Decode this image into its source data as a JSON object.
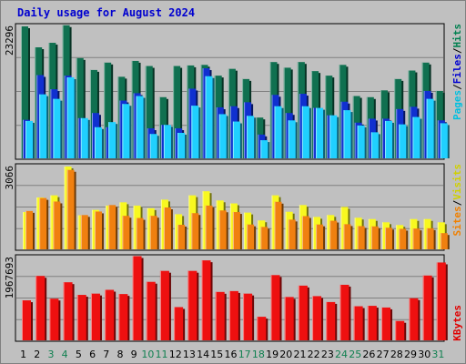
{
  "title": "Daily usage for August 2024",
  "colors": {
    "hits": "#107050",
    "files": "#1030d0",
    "pages": "#20d0ff",
    "visits": "#f8f820",
    "sites": "#f08010",
    "kbytes": "#ee1010",
    "weekend_label": "#108050",
    "weekday_label": "#000000",
    "pages_label": "#00c0e0",
    "files_label": "#0000d0",
    "hits_label": "#008050",
    "visits_label": "#d0d000",
    "sites_label": "#f08000",
    "kbytes_label": "#e00000"
  },
  "chart_data": [
    {
      "type": "bar",
      "name": "hits-files-pages",
      "categories": [
        "1",
        "2",
        "3",
        "4",
        "5",
        "6",
        "7",
        "8",
        "9",
        "10",
        "11",
        "12",
        "13",
        "14",
        "15",
        "16",
        "17",
        "18",
        "19",
        "20",
        "21",
        "22",
        "23",
        "24",
        "25",
        "26",
        "27",
        "28",
        "29",
        "30",
        "31"
      ],
      "weekend": [
        false,
        false,
        true,
        true,
        false,
        false,
        false,
        false,
        false,
        true,
        true,
        false,
        false,
        false,
        false,
        false,
        true,
        true,
        false,
        false,
        false,
        false,
        false,
        true,
        true,
        false,
        false,
        false,
        false,
        false,
        true
      ],
      "ylabel_max": "23296",
      "ymax": 23296,
      "legend": [
        "Pages",
        "Files",
        "Hits"
      ],
      "series": [
        {
          "name": "Hits",
          "values": [
            23296,
            19600,
            20400,
            23496,
            17700,
            15600,
            16900,
            14400,
            17200,
            16300,
            10800,
            16300,
            16400,
            16500,
            14600,
            15800,
            14000,
            7200,
            17000,
            16000,
            17000,
            15400,
            14600,
            16500,
            11000,
            10800,
            12000,
            14000,
            15500,
            16900,
            11900
          ]
        },
        {
          "name": "Files",
          "values": [
            6800,
            14700,
            12200,
            14600,
            7100,
            8000,
            5500,
            10200,
            11500,
            5300,
            5900,
            5300,
            12300,
            15900,
            9000,
            9200,
            9900,
            4200,
            11200,
            8000,
            11400,
            8900,
            7600,
            10000,
            6300,
            7000,
            7000,
            8700,
            9100,
            11900,
            6700
          ]
        },
        {
          "name": "Pages",
          "values": [
            6600,
            11300,
            10500,
            14300,
            7100,
            5500,
            6400,
            9600,
            11000,
            4300,
            5900,
            4500,
            9300,
            14500,
            7800,
            6500,
            7500,
            3200,
            9200,
            6700,
            9200,
            8900,
            7600,
            8500,
            5800,
            4600,
            6600,
            6000,
            7300,
            10500,
            6200
          ]
        }
      ]
    },
    {
      "type": "bar",
      "name": "visits-sites",
      "categories": [
        "1",
        "2",
        "3",
        "4",
        "5",
        "6",
        "7",
        "8",
        "9",
        "10",
        "11",
        "12",
        "13",
        "14",
        "15",
        "16",
        "17",
        "18",
        "19",
        "20",
        "21",
        "22",
        "23",
        "24",
        "25",
        "26",
        "27",
        "28",
        "29",
        "30",
        "31"
      ],
      "ylabel_max": "3066",
      "ymax": 3066,
      "legend": [
        "Sites",
        "Visits"
      ],
      "series": [
        {
          "name": "Visits",
          "values": [
            1380,
            1920,
            2000,
            3066,
            1260,
            1460,
            1620,
            1740,
            1620,
            1520,
            1840,
            1300,
            2000,
            2150,
            1810,
            1700,
            1360,
            1070,
            2000,
            1390,
            1640,
            1200,
            1270,
            1570,
            1170,
            1120,
            1000,
            900,
            1120,
            1120,
            1000
          ]
        },
        {
          "name": "Sites",
          "values": [
            1420,
            1900,
            1770,
            2940,
            1270,
            1400,
            1640,
            1240,
            1160,
            1240,
            1550,
            910,
            1340,
            1620,
            1440,
            1380,
            920,
            830,
            1760,
            1100,
            1230,
            920,
            1060,
            930,
            860,
            850,
            800,
            760,
            770,
            780,
            600
          ]
        }
      ]
    },
    {
      "type": "bar",
      "name": "kbytes",
      "categories": [
        "1",
        "2",
        "3",
        "4",
        "5",
        "6",
        "7",
        "8",
        "9",
        "10",
        "11",
        "12",
        "13",
        "14",
        "15",
        "16",
        "17",
        "18",
        "19",
        "20",
        "21",
        "22",
        "23",
        "24",
        "25",
        "26",
        "27",
        "28",
        "29",
        "30",
        "31"
      ],
      "ylabel_max": "1967693",
      "ymax": 1967693,
      "legend": [
        "KBytes"
      ],
      "series": [
        {
          "name": "KBytes",
          "values": [
            950000,
            1530000,
            990000,
            1380000,
            1080000,
            1110000,
            1200000,
            1100000,
            2000000,
            1390000,
            1650000,
            790000,
            1650000,
            1900000,
            1150000,
            1170000,
            1110000,
            560000,
            1550000,
            1030000,
            1300000,
            1050000,
            910000,
            1320000,
            810000,
            820000,
            780000,
            460000,
            1000000,
            1540000,
            1850000
          ]
        }
      ]
    }
  ]
}
